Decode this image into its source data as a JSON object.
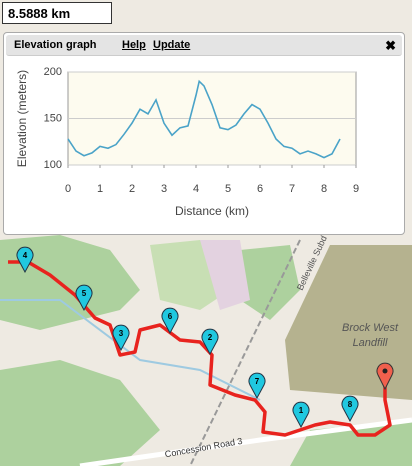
{
  "distance_box": "8.5888 km",
  "panel": {
    "title": "Elevation graph",
    "links": [
      "Help",
      "Update"
    ],
    "close": "✖"
  },
  "chart_data": {
    "type": "line",
    "xlabel": "Distance (km)",
    "ylabel": "Elevation (meters)",
    "xlim": [
      0,
      9
    ],
    "xticks": [
      0,
      1,
      2,
      3,
      4,
      5,
      6,
      7,
      8,
      9
    ],
    "ylim": [
      100,
      200
    ],
    "yticks": [
      100,
      150,
      200
    ],
    "grid": true,
    "series": [
      {
        "color": "#4aa3c8",
        "x": [
          0,
          0.25,
          0.5,
          0.75,
          1.0,
          1.25,
          1.5,
          1.75,
          2.0,
          2.25,
          2.5,
          2.75,
          3.0,
          3.25,
          3.5,
          3.75,
          4.0,
          4.1,
          4.25,
          4.5,
          4.75,
          5.0,
          5.25,
          5.5,
          5.75,
          6.0,
          6.25,
          6.5,
          6.75,
          7.0,
          7.25,
          7.5,
          7.75,
          8.0,
          8.25,
          8.5
        ],
        "values": [
          128,
          115,
          110,
          113,
          120,
          118,
          122,
          133,
          145,
          160,
          155,
          170,
          145,
          132,
          140,
          142,
          175,
          190,
          185,
          165,
          140,
          138,
          143,
          155,
          165,
          160,
          145,
          128,
          120,
          118,
          112,
          115,
          112,
          108,
          112,
          128
        ]
      }
    ]
  },
  "map": {
    "labels": [
      "Brock West",
      "Landfill",
      "Concession Road 3",
      "Belleville Subd"
    ],
    "markers": [
      "4",
      "5",
      "3",
      "6",
      "2",
      "7",
      "1",
      "8"
    ]
  }
}
